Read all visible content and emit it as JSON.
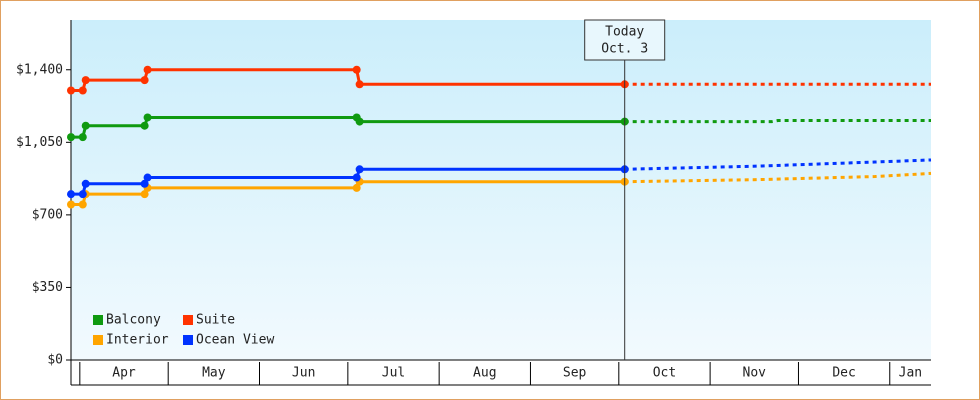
{
  "chart_data": {
    "type": "line",
    "ylim": [
      0,
      1640
    ],
    "yticks": [
      {
        "value": 0,
        "label": "$0"
      },
      {
        "value": 350,
        "label": "$350"
      },
      {
        "value": 700,
        "label": "$700"
      },
      {
        "value": 1050,
        "label": "$1,050"
      },
      {
        "value": 1400,
        "label": "$1,400"
      }
    ],
    "xlim": [
      -3,
      289
    ],
    "xticks": [
      {
        "value": 0,
        "label": "Apr"
      },
      {
        "value": 30,
        "label": "May"
      },
      {
        "value": 61,
        "label": "Jun"
      },
      {
        "value": 91,
        "label": "Jul"
      },
      {
        "value": 122,
        "label": "Aug"
      },
      {
        "value": 153,
        "label": "Sep"
      },
      {
        "value": 183,
        "label": "Oct"
      },
      {
        "value": 214,
        "label": "Nov"
      },
      {
        "value": 244,
        "label": "Dec"
      },
      {
        "value": 275,
        "label": "Jan"
      }
    ],
    "annotation": {
      "x": 185,
      "lines": [
        "Today",
        "Oct. 3"
      ]
    },
    "legend": "lower left",
    "series": [
      {
        "name": "Balcony",
        "color": "#109a10",
        "x": [
          -3,
          1,
          2,
          22,
          23,
          94,
          95,
          185
        ],
        "values": [
          1075,
          1075,
          1130,
          1130,
          1170,
          1170,
          1150,
          1150
        ],
        "forecast_x": [
          185,
          235,
          237,
          289
        ],
        "forecast_values": [
          1150,
          1150,
          1155,
          1155
        ]
      },
      {
        "name": "Suite",
        "color": "#ff3300",
        "x": [
          -3,
          1,
          2,
          22,
          23,
          94,
          95,
          185
        ],
        "values": [
          1300,
          1300,
          1350,
          1350,
          1400,
          1400,
          1330,
          1330
        ],
        "forecast_x": [
          185,
          289
        ],
        "forecast_values": [
          1330,
          1330
        ]
      },
      {
        "name": "Interior",
        "color": "#ffa500",
        "x": [
          -3,
          1,
          2,
          22,
          23,
          94,
          95,
          185
        ],
        "values": [
          750,
          750,
          800,
          800,
          830,
          830,
          860,
          860
        ],
        "forecast_x": [
          185,
          230,
          270,
          289
        ],
        "forecast_values": [
          860,
          870,
          885,
          900
        ]
      },
      {
        "name": "Ocean View",
        "color": "#0033ff",
        "x": [
          -3,
          1,
          2,
          22,
          23,
          94,
          95,
          185
        ],
        "values": [
          800,
          800,
          850,
          850,
          880,
          880,
          920,
          920
        ],
        "forecast_x": [
          185,
          230,
          270,
          289
        ],
        "forecast_values": [
          920,
          935,
          955,
          965
        ]
      }
    ]
  }
}
